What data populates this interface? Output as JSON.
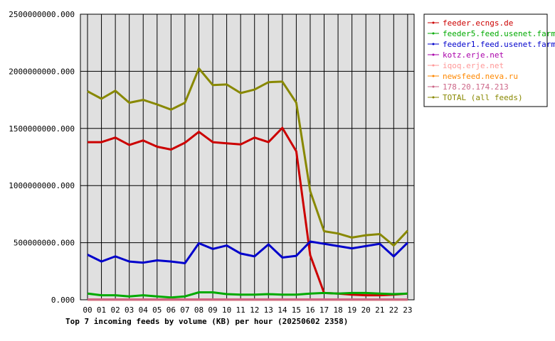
{
  "chart_data": {
    "type": "line",
    "title": "Top 7 incoming feeds by volume (KB) per hour (20250602 2358)",
    "xlabel": "",
    "ylabel": "",
    "categories": [
      "00",
      "01",
      "02",
      "03",
      "04",
      "05",
      "06",
      "07",
      "08",
      "09",
      "10",
      "11",
      "12",
      "13",
      "14",
      "15",
      "16",
      "17",
      "18",
      "19",
      "20",
      "21",
      "22",
      "23"
    ],
    "ylim": [
      0,
      2500000000
    ],
    "y_ticks": [
      "0.000",
      "500000000.000",
      "1000000000.000",
      "1500000000.000",
      "2000000000.000",
      "2500000000.000"
    ],
    "grid": true,
    "legend_position": "right",
    "series": [
      {
        "name": "feeder.ecngs.de",
        "color": "#cc0000",
        "values": [
          1380000000,
          1380000000,
          1420000000,
          1355000000,
          1395000000,
          1340000000,
          1315000000,
          1375000000,
          1470000000,
          1380000000,
          1370000000,
          1360000000,
          1420000000,
          1380000000,
          1505000000,
          1300000000,
          390000000,
          60000000,
          55000000,
          45000000,
          40000000,
          40000000,
          45000000,
          55000000
        ]
      },
      {
        "name": "feeder5.feed.usenet.farm",
        "color": "#00aa00",
        "values": [
          55000000,
          40000000,
          40000000,
          30000000,
          40000000,
          30000000,
          20000000,
          30000000,
          65000000,
          65000000,
          50000000,
          45000000,
          45000000,
          50000000,
          45000000,
          45000000,
          55000000,
          60000000,
          55000000,
          60000000,
          60000000,
          55000000,
          50000000,
          55000000
        ]
      },
      {
        "name": "feeder1.feed.usenet.farm",
        "color": "#0000cc",
        "values": [
          395000000,
          335000000,
          380000000,
          335000000,
          325000000,
          345000000,
          335000000,
          320000000,
          495000000,
          445000000,
          475000000,
          405000000,
          380000000,
          485000000,
          370000000,
          385000000,
          510000000,
          490000000,
          470000000,
          450000000,
          470000000,
          490000000,
          380000000,
          500000000
        ]
      },
      {
        "name": "kotz.erje.net",
        "color": "#aa00aa",
        "values": [
          3000000,
          3000000,
          3000000,
          3000000,
          3000000,
          3000000,
          3000000,
          3000000,
          3000000,
          3000000,
          3000000,
          3000000,
          3000000,
          3000000,
          3000000,
          3000000,
          3000000,
          3000000,
          3000000,
          3000000,
          3000000,
          3000000,
          3000000,
          3000000
        ]
      },
      {
        "name": "iqoq.erje.net",
        "color": "#ff9999",
        "values": [
          2000000,
          2000000,
          2000000,
          2000000,
          2000000,
          2000000,
          2000000,
          2000000,
          2000000,
          2000000,
          2000000,
          2000000,
          2000000,
          2000000,
          2000000,
          2000000,
          2000000,
          2000000,
          2000000,
          2000000,
          2000000,
          2000000,
          2000000,
          2000000
        ]
      },
      {
        "name": "newsfeed.neva.ru",
        "color": "#ff8800",
        "values": [
          1000000,
          1000000,
          1000000,
          1000000,
          1000000,
          1000000,
          1000000,
          1000000,
          1000000,
          1000000,
          1000000,
          1000000,
          1000000,
          1000000,
          1000000,
          1000000,
          1000000,
          1000000,
          1000000,
          1000000,
          1000000,
          1000000,
          1000000,
          1000000
        ]
      },
      {
        "name": "178.20.174.213",
        "color": "#cc6688",
        "values": [
          1000000,
          1000000,
          1000000,
          1000000,
          1000000,
          1000000,
          1000000,
          1000000,
          1000000,
          1000000,
          1000000,
          1000000,
          1000000,
          1000000,
          1000000,
          1000000,
          1000000,
          1000000,
          1000000,
          1000000,
          1000000,
          1000000,
          1000000,
          1000000
        ]
      },
      {
        "name": "TOTAL (all feeds)",
        "color": "#888800",
        "values": [
          1825000000,
          1760000000,
          1830000000,
          1725000000,
          1750000000,
          1710000000,
          1665000000,
          1725000000,
          2025000000,
          1880000000,
          1885000000,
          1810000000,
          1840000000,
          1905000000,
          1910000000,
          1725000000,
          950000000,
          600000000,
          580000000,
          545000000,
          565000000,
          575000000,
          475000000,
          605000000
        ]
      }
    ]
  }
}
